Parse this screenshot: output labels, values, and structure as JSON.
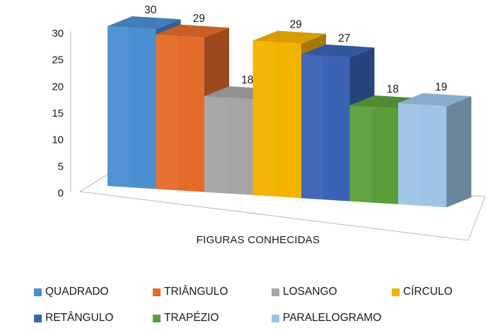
{
  "chart_data": {
    "type": "bar",
    "subtype": "3d-clustered-column",
    "title": "",
    "xlabel": "FIGURAS CONHECIDAS",
    "ylabel": "",
    "ylim": [
      0,
      30
    ],
    "yticks": [
      "0",
      "5",
      "10",
      "15",
      "20",
      "25",
      "30"
    ],
    "grid": false,
    "legend_position": "bottom",
    "categories": [
      "FIGURAS CONHECIDAS"
    ],
    "series": [
      {
        "name": "QUADRADO",
        "values": [
          30
        ],
        "label": "30",
        "color": "#4a8fd0"
      },
      {
        "name": "TRIÂNGULO",
        "values": [
          29
        ],
        "label": "29",
        "color": "#e46c2a"
      },
      {
        "name": "LOSANGO",
        "values": [
          18
        ],
        "label": "18",
        "color": "#a5a5a5"
      },
      {
        "name": "CÍRCULO",
        "values": [
          29
        ],
        "label": "29",
        "color": "#f2b200"
      },
      {
        "name": "RETÂNGULO",
        "values": [
          27
        ],
        "label": "27",
        "color": "#3a63b5"
      },
      {
        "name": "TRAPÉZIO",
        "values": [
          18
        ],
        "label": "18",
        "color": "#5a9e3a"
      },
      {
        "name": "PARALELOGRAMO",
        "values": [
          19
        ],
        "label": "19",
        "color": "#9dc3e6"
      }
    ]
  }
}
